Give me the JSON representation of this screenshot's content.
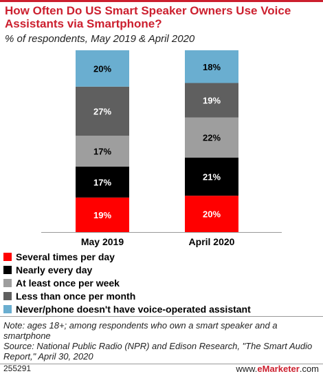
{
  "header": {
    "title": "How Often Do US Smart Speaker Owners Use Voice Assistants via Smartphone?",
    "subtitle": "% of respondents, May 2019 & April 2020"
  },
  "colors": {
    "accent": "#cc1f2e",
    "series": [
      "#ff0000",
      "#000000",
      "#9e9e9e",
      "#5f5f5f",
      "#6aaed0"
    ]
  },
  "chart_data": {
    "type": "bar",
    "stacked": true,
    "categories": [
      "May 2019",
      "April 2020"
    ],
    "series": [
      {
        "name": "Several times per day",
        "values": [
          19,
          20
        ],
        "color": "#ff0000"
      },
      {
        "name": "Nearly every day",
        "values": [
          17,
          21
        ],
        "color": "#000000"
      },
      {
        "name": "At least once per week",
        "values": [
          17,
          22
        ],
        "color": "#9e9e9e"
      },
      {
        "name": "Less than once per month",
        "values": [
          27,
          19
        ],
        "color": "#5f5f5f"
      },
      {
        "name": "Never/phone doesn't have voice-operated assistant",
        "values": [
          20,
          18
        ],
        "color": "#6aaed0"
      }
    ],
    "ylim": [
      0,
      100
    ],
    "grid": false,
    "legend": "bottom"
  },
  "legend_items": [
    "Several times per day",
    "Nearly every day",
    "At least once per week",
    "Less than once per month",
    "Never/phone doesn't have voice-operated assistant"
  ],
  "footer": {
    "note_line1": "Note: ages 18+; among respondents who own a smart speaker and a smartphone",
    "note_line2": "Source: National Public Radio (NPR) and Edison Research, \"The Smart Audio Report,\" April 30, 2020",
    "id": "255291",
    "brand_prefix": "www.",
    "brand_name": "eMarketer",
    "brand_suffix": ".com"
  }
}
